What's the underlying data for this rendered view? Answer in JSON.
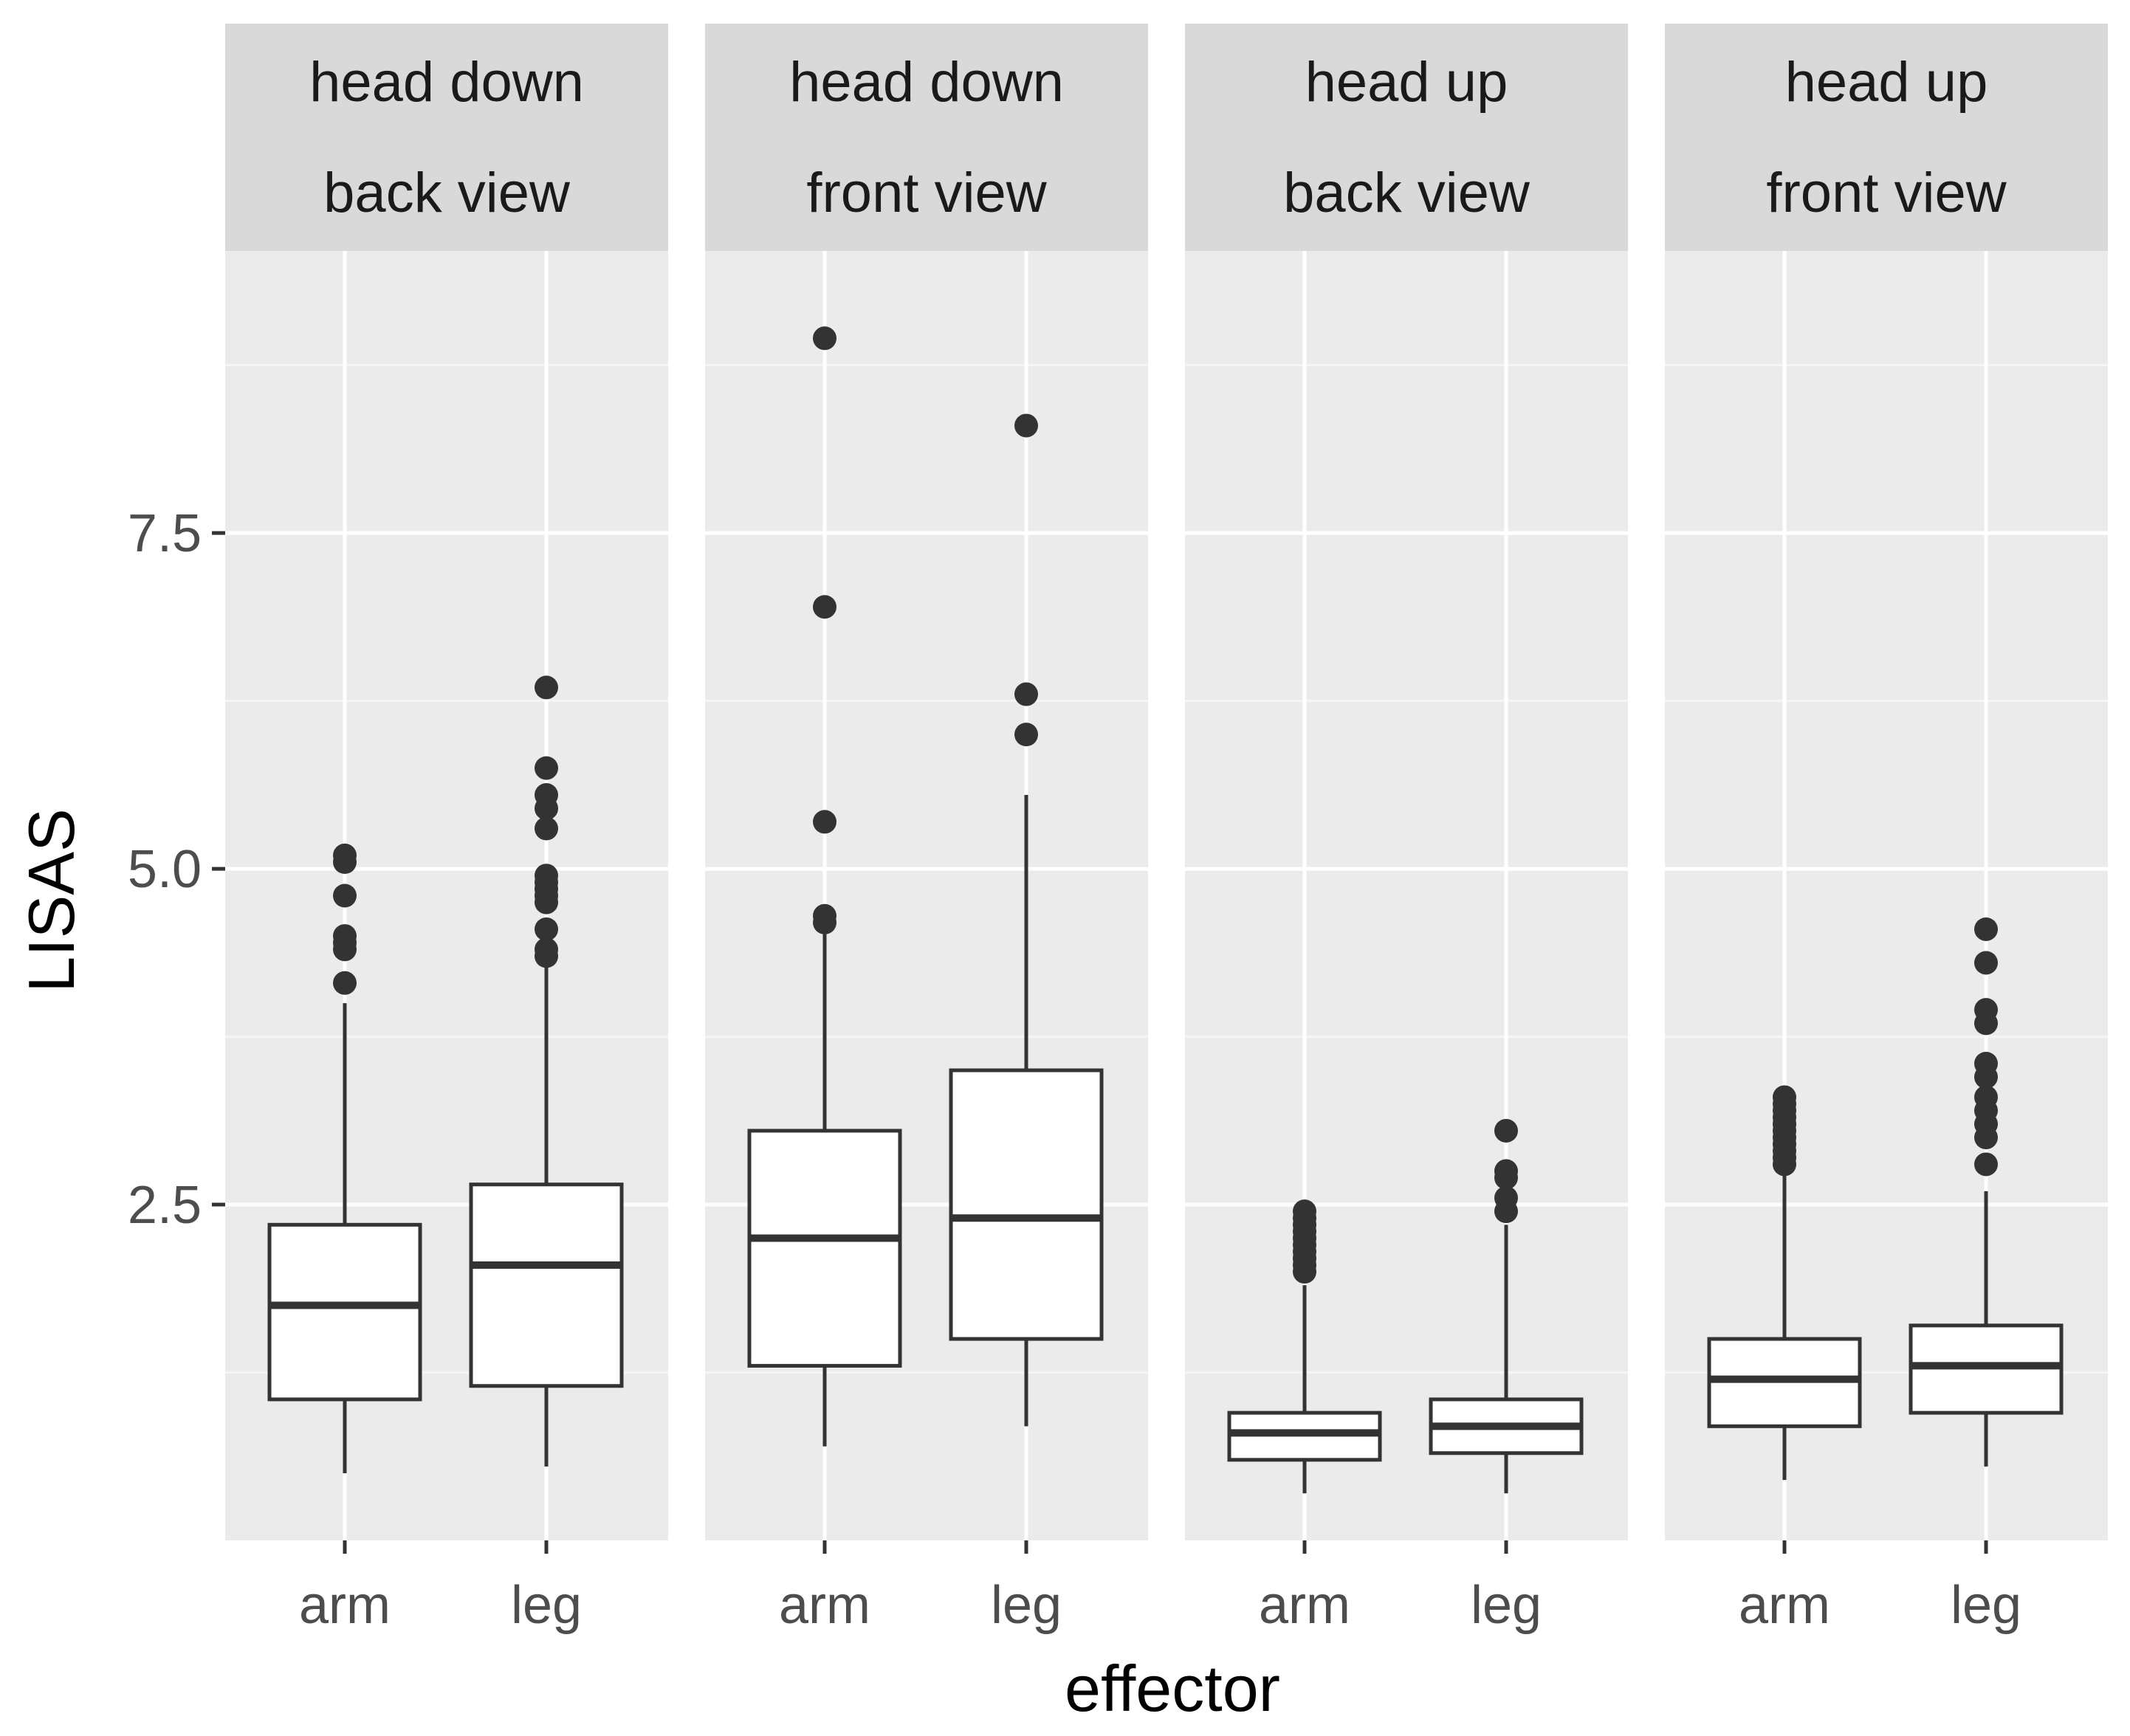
{
  "chart_data": {
    "type": "boxplot",
    "facet_by": "head orientation / view",
    "xlabel": "effector",
    "ylabel": "LISAS",
    "ylim": [
      0.0,
      9.6
    ],
    "y_ticks": [
      2.5,
      5.0,
      7.5
    ],
    "y_tick_labels": [
      "2.5",
      "5.0",
      "7.5"
    ],
    "categories": [
      "arm",
      "leg"
    ],
    "facets": [
      {
        "strip": [
          "head down",
          "back view"
        ],
        "boxes": [
          {
            "category": "arm",
            "lower_whisker": 0.5,
            "q1": 1.05,
            "median": 1.75,
            "q3": 2.35,
            "upper_whisker": 4.0,
            "outliers": [
              5.1,
              5.05,
              4.8,
              4.5,
              4.45,
              4.4,
              4.15
            ]
          },
          {
            "category": "leg",
            "lower_whisker": 0.55,
            "q1": 1.15,
            "median": 2.05,
            "q3": 2.65,
            "upper_whisker": 4.3,
            "outliers": [
              6.35,
              5.75,
              5.55,
              5.45,
              5.3,
              4.95,
              4.9,
              4.85,
              4.8,
              4.75,
              4.55,
              4.4,
              4.35
            ]
          }
        ]
      },
      {
        "strip": [
          "head down",
          "front view"
        ],
        "boxes": [
          {
            "category": "arm",
            "lower_whisker": 0.7,
            "q1": 1.3,
            "median": 2.25,
            "q3": 3.05,
            "upper_whisker": 4.55,
            "outliers": [
              8.95,
              6.95,
              5.35,
              4.65,
              4.6
            ]
          },
          {
            "category": "leg",
            "lower_whisker": 0.85,
            "q1": 1.5,
            "median": 2.4,
            "q3": 3.5,
            "upper_whisker": 5.55,
            "outliers": [
              8.3,
              6.3,
              6.0
            ]
          }
        ]
      },
      {
        "strip": [
          "head up",
          "back view"
        ],
        "boxes": [
          {
            "category": "arm",
            "lower_whisker": 0.35,
            "q1": 0.6,
            "median": 0.8,
            "q3": 0.95,
            "upper_whisker": 1.9,
            "outliers": [
              2.45,
              2.4,
              2.35,
              2.3,
              2.25,
              2.2,
              2.15,
              2.1,
              2.05,
              2.0
            ]
          },
          {
            "category": "leg",
            "lower_whisker": 0.35,
            "q1": 0.65,
            "median": 0.85,
            "q3": 1.05,
            "upper_whisker": 2.35,
            "outliers": [
              3.05,
              2.75,
              2.7,
              2.55,
              2.45
            ]
          }
        ]
      },
      {
        "strip": [
          "head up",
          "front view"
        ],
        "boxes": [
          {
            "category": "arm",
            "lower_whisker": 0.45,
            "q1": 0.85,
            "median": 1.2,
            "q3": 1.5,
            "upper_whisker": 2.75,
            "outliers": [
              3.3,
              3.25,
              3.2,
              3.15,
              3.1,
              3.05,
              3.0,
              2.95,
              2.9,
              2.85,
              2.8
            ]
          },
          {
            "category": "leg",
            "lower_whisker": 0.55,
            "q1": 0.95,
            "median": 1.3,
            "q3": 1.6,
            "upper_whisker": 2.6,
            "outliers": [
              4.55,
              4.3,
              3.95,
              3.85,
              3.55,
              3.45,
              3.3,
              3.2,
              3.1,
              3.0,
              2.8
            ]
          }
        ]
      }
    ]
  }
}
